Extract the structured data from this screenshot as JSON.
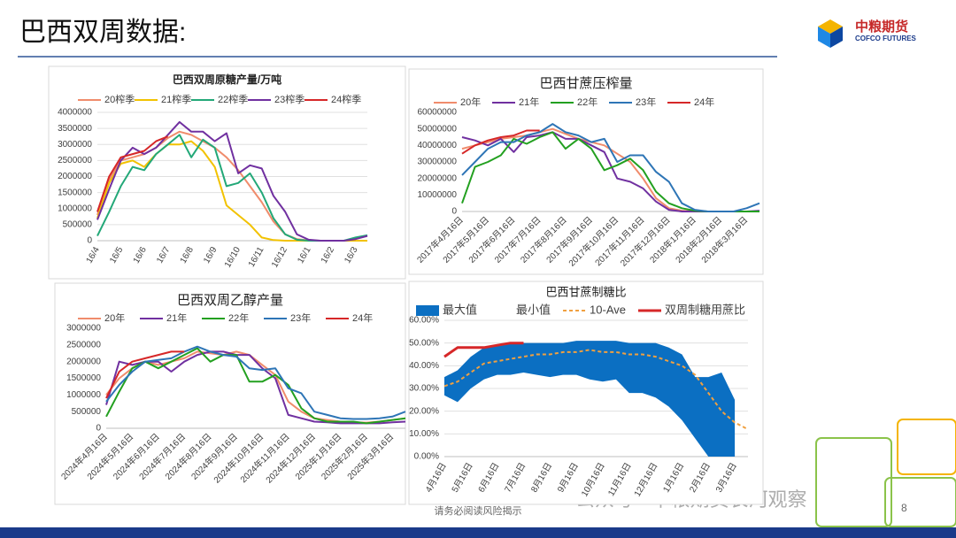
{
  "header": {
    "title": "巴西双周数据:"
  },
  "logo": {
    "name": "中粮期货",
    "english": "COFCO FUTURES"
  },
  "footer": {
    "note": "请务必阅读风险揭示",
    "page": "8",
    "watermark": "公众号 · 中粮期货长河观察"
  },
  "chart_data": [
    {
      "type": "line",
      "title": "巴西双周原糖产量/万吨",
      "grid": true,
      "categories": [
        "16/4",
        null,
        "16/5",
        null,
        "16/6",
        null,
        "16/7",
        null,
        "16/8",
        null,
        "16/9",
        null,
        "16/10",
        null,
        "16/11",
        null,
        "16/12",
        null,
        "16/1",
        null,
        "16/2",
        null,
        "16/3",
        null
      ],
      "ylim": [
        0,
        4000000
      ],
      "yticks": [
        0,
        500000,
        1000000,
        1500000,
        2000000,
        2500000,
        3000000,
        3500000,
        4000000
      ],
      "series": [
        {
          "name": "20榨季",
          "color": "#f08c6c",
          "values": [
            800000,
            1900000,
            2500000,
            2600000,
            2700000,
            2900000,
            3200000,
            3400000,
            3300000,
            3100000,
            2900000,
            2600000,
            2200000,
            1700000,
            1200000,
            600000,
            200000,
            50000,
            10000,
            0,
            0,
            0,
            0,
            0
          ]
        },
        {
          "name": "21榨季",
          "color": "#f2c200",
          "values": [
            700000,
            1800000,
            2400000,
            2500000,
            2300000,
            2700000,
            3000000,
            3000000,
            3100000,
            2800000,
            2300000,
            1100000,
            800000,
            500000,
            100000,
            20000,
            0,
            0,
            0,
            0,
            0,
            0,
            0,
            0
          ]
        },
        {
          "name": "22榨季",
          "color": "#23a878",
          "values": [
            150000,
            900000,
            1700000,
            2300000,
            2200000,
            2700000,
            3000000,
            3300000,
            2600000,
            3150000,
            2900000,
            1700000,
            1800000,
            2100000,
            1500000,
            700000,
            200000,
            30000,
            0,
            0,
            0,
            0,
            100000,
            170000
          ]
        },
        {
          "name": "23榨季",
          "color": "#7030a0",
          "values": [
            650000,
            1600000,
            2500000,
            2900000,
            2700000,
            2900000,
            3300000,
            3700000,
            3400000,
            3400000,
            3100000,
            3350000,
            2100000,
            2350000,
            2250000,
            1400000,
            900000,
            200000,
            30000,
            0,
            0,
            0,
            50000,
            150000
          ]
        },
        {
          "name": "24榨季",
          "color": "#d62728",
          "values": [
            900000,
            2000000,
            2600000,
            2700000,
            2800000,
            3100000,
            3250000,
            null,
            null,
            null,
            null,
            null,
            null,
            null,
            null,
            null,
            null,
            null,
            null,
            null,
            null,
            null,
            null,
            null
          ]
        }
      ]
    },
    {
      "type": "line",
      "title": "巴西甘蔗压榨量",
      "grid": false,
      "categories": [
        "2017年4月16日",
        null,
        "2017年5月16日",
        null,
        "2017年6月16日",
        null,
        "2017年7月16日",
        null,
        "2017年8月16日",
        null,
        "2017年9月16日",
        null,
        "2017年10月16日",
        null,
        "2017年11月16日",
        null,
        "2017年12月16日",
        null,
        "2018年1月16日",
        null,
        "2018年2月16日",
        null,
        "2018年3月16日",
        null
      ],
      "ylim": [
        0,
        60000000
      ],
      "yticks": [
        0,
        10000000,
        20000000,
        30000000,
        40000000,
        50000000,
        60000000
      ],
      "series": [
        {
          "name": "20年",
          "color": "#f08c6c",
          "values": [
            38000000,
            40000000,
            42000000,
            44000000,
            45000000,
            46000000,
            48000000,
            50000000,
            47000000,
            44000000,
            42000000,
            40000000,
            35000000,
            30000000,
            20000000,
            8000000,
            2000000,
            500000,
            0,
            0,
            0,
            0,
            0,
            0
          ]
        },
        {
          "name": "21年",
          "color": "#7030a0",
          "values": [
            45000000,
            43000000,
            40000000,
            44000000,
            36000000,
            45000000,
            46000000,
            48000000,
            44000000,
            44000000,
            40000000,
            36000000,
            20000000,
            18000000,
            14000000,
            6000000,
            1000000,
            0,
            0,
            0,
            0,
            0,
            0,
            500000
          ]
        },
        {
          "name": "22年",
          "color": "#23a020",
          "values": [
            5000000,
            27000000,
            30000000,
            34000000,
            44000000,
            41000000,
            45000000,
            48000000,
            38000000,
            44000000,
            38000000,
            25000000,
            28000000,
            32000000,
            25000000,
            12000000,
            5000000,
            2000000,
            500000,
            0,
            0,
            0,
            0,
            0
          ]
        },
        {
          "name": "23年",
          "color": "#2e75b6",
          "values": [
            22000000,
            30000000,
            38000000,
            42000000,
            42000000,
            46000000,
            48000000,
            53000000,
            48000000,
            46000000,
            42000000,
            44000000,
            30000000,
            34000000,
            34000000,
            24000000,
            18000000,
            5000000,
            1000000,
            0,
            0,
            0,
            2000000,
            5000000
          ]
        },
        {
          "name": "24年",
          "color": "#d62728",
          "values": [
            35000000,
            40000000,
            43000000,
            45000000,
            46000000,
            49000000,
            49000000,
            null,
            null,
            null,
            null,
            null,
            null,
            null,
            null,
            null,
            null,
            null,
            null,
            null,
            null,
            null,
            null,
            null
          ]
        }
      ]
    },
    {
      "type": "line",
      "title": "巴西双周乙醇产量",
      "grid": false,
      "categories": [
        "2024年4月16日",
        null,
        "2024年5月16日",
        null,
        "2024年6月16日",
        null,
        "2024年7月16日",
        null,
        "2024年8月16日",
        null,
        "2024年9月16日",
        null,
        "2024年10月16日",
        null,
        "2024年11月16日",
        null,
        "2024年12月16日",
        null,
        "2025年1月16日",
        null,
        "2025年2月16日",
        null,
        "2025年3月16日",
        null
      ],
      "ylim": [
        0,
        3000000
      ],
      "yticks": [
        0,
        500000,
        1000000,
        1500000,
        2000000,
        2500000,
        3000000
      ],
      "series": [
        {
          "name": "20年",
          "color": "#f08c6c",
          "values": [
            1000000,
            1500000,
            1800000,
            2000000,
            1900000,
            2000000,
            2100000,
            2300000,
            2250000,
            2200000,
            2300000,
            2200000,
            1900000,
            1600000,
            800000,
            500000,
            300000,
            250000,
            200000,
            180000,
            170000,
            200000,
            250000,
            300000
          ]
        },
        {
          "name": "21年",
          "color": "#7030a0",
          "values": [
            700000,
            2000000,
            1900000,
            2000000,
            2000000,
            1700000,
            2000000,
            2200000,
            2300000,
            2300000,
            2200000,
            2200000,
            1800000,
            1500000,
            400000,
            300000,
            200000,
            180000,
            150000,
            150000,
            150000,
            150000,
            180000,
            200000
          ]
        },
        {
          "name": "22年",
          "color": "#23a020",
          "values": [
            350000,
            1100000,
            1800000,
            2000000,
            1800000,
            2000000,
            2200000,
            2400000,
            2000000,
            2200000,
            2200000,
            1400000,
            1400000,
            1600000,
            1300000,
            600000,
            300000,
            200000,
            200000,
            200000,
            150000,
            200000,
            250000,
            300000
          ]
        },
        {
          "name": "23年",
          "color": "#2e75b6",
          "values": [
            800000,
            1300000,
            1700000,
            2000000,
            2050000,
            2100000,
            2300000,
            2450000,
            2300000,
            2200000,
            2150000,
            1800000,
            1750000,
            1800000,
            1200000,
            1050000,
            500000,
            400000,
            300000,
            280000,
            280000,
            300000,
            350000,
            500000
          ]
        },
        {
          "name": "24年",
          "color": "#d62728",
          "values": [
            900000,
            1700000,
            2000000,
            2100000,
            2200000,
            2300000,
            2300000,
            null,
            null,
            null,
            null,
            null,
            null,
            null,
            null,
            null,
            null,
            null,
            null,
            null,
            null,
            null,
            null,
            null
          ]
        }
      ]
    },
    {
      "type": "band",
      "title": "巴西甘蔗制糖比",
      "grid": true,
      "categories": [
        "4月16日",
        null,
        "5月16日",
        null,
        "6月16日",
        null,
        "7月16日",
        null,
        "8月16日",
        null,
        "9月16日",
        null,
        "10月16日",
        null,
        "11月16日",
        null,
        "12月16日",
        null,
        "1月16日",
        null,
        "2月16日",
        null,
        "3月16日",
        null
      ],
      "ylim": [
        0,
        60
      ],
      "yticks": [
        {
          "value": 0,
          "label": "0.00%"
        },
        {
          "value": 10,
          "label": "10.00%"
        },
        {
          "value": 20,
          "label": "20.00%"
        },
        {
          "value": 30,
          "label": "30.00%"
        },
        {
          "value": 40,
          "label": "40.00%"
        },
        {
          "value": 50,
          "label": "50.00%"
        },
        {
          "value": 60,
          "label": "60.00%"
        }
      ],
      "series": [
        {
          "name": "最大值",
          "color": "#0b6fc2",
          "fill": true,
          "values": [
            35,
            38,
            44,
            48,
            49,
            50,
            50,
            50,
            50,
            50,
            51,
            51,
            51,
            51,
            50,
            50,
            50,
            48,
            45,
            35,
            35,
            37,
            25,
            null
          ]
        },
        {
          "name": "最小值",
          "color": "#ffffff",
          "fill": true,
          "values": [
            27,
            24,
            30,
            34,
            36,
            36,
            37,
            36,
            35,
            36,
            36,
            34,
            33,
            34,
            28,
            28,
            26,
            22,
            16,
            8,
            0,
            0,
            0,
            null
          ]
        },
        {
          "name": "10-Ave",
          "color": "#f0a040",
          "dashed": true,
          "values": [
            31,
            33,
            37,
            41,
            42,
            43,
            44,
            45,
            45,
            46,
            46,
            47,
            46,
            46,
            45,
            45,
            44,
            42,
            40,
            36,
            28,
            20,
            15,
            12
          ]
        },
        {
          "name": "双周制糖用蔗比",
          "color": "#d62728",
          "line_width": 3,
          "values": [
            44,
            48,
            48,
            48,
            49,
            50,
            50,
            null,
            null,
            null,
            null,
            null,
            null,
            null,
            null,
            null,
            null,
            null,
            null,
            null,
            null,
            null,
            null,
            null
          ]
        }
      ]
    }
  ]
}
